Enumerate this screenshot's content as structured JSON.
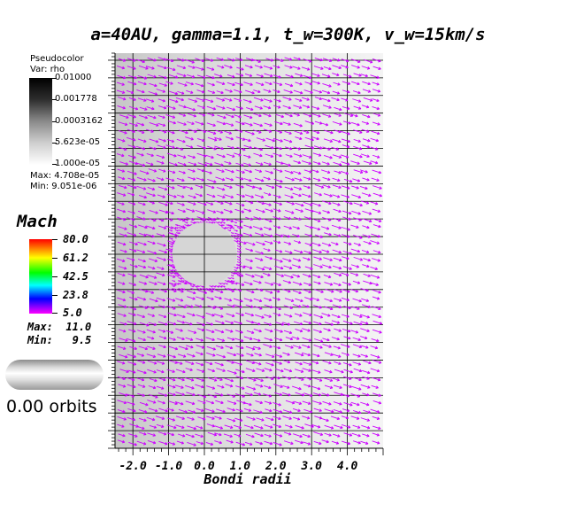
{
  "title": "a=40AU, gamma=1.1, t_w=300K, v_w=15km/s",
  "pseudocolor_legend": {
    "title": "Pseudocolor",
    "var_label": "Var: rho",
    "ticks": [
      "0.01000",
      "0.001778",
      "0.0003162",
      "5.623e-05",
      "1.000e-05"
    ],
    "max_label": "Max:  4.708e-05",
    "min_label": "Min:  9.051e-06",
    "colormap": [
      "#000000",
      "#ffffff"
    ]
  },
  "mach_legend": {
    "title": "Mach",
    "ticks": [
      "80.0",
      "61.2",
      "42.5",
      "23.8",
      "5.0"
    ],
    "max_label": "Max:  11.0",
    "min_label": "Min:   9.5",
    "colormap": [
      "#ff0000",
      "#ffff00",
      "#00ff00",
      "#00ffff",
      "#0000ff",
      "#ff00ff"
    ]
  },
  "time_label": "0.00 orbits",
  "chart_data": {
    "type": "pseudocolor with vector field",
    "xlabel": "Bondi radii",
    "ylabel": "",
    "x_tick_labels": [
      "-2.0",
      "-1.0",
      "0.0",
      "1.0",
      "2.0",
      "3.0",
      "4.0"
    ],
    "x_ticks": [
      -2.0,
      -1.0,
      0.0,
      1.0,
      2.0,
      3.0,
      4.0
    ],
    "xlim": [
      -2.5,
      5.0
    ],
    "ylim": [
      -5.0,
      6.2
    ],
    "grid": true,
    "grid_x": [
      -2.0,
      -1.0,
      0.0,
      1.0,
      2.0,
      3.0,
      4.0
    ],
    "grid_y_spacing": 0.5,
    "obstacle": {
      "shape": "circle",
      "center": [
        0.0,
        0.5
      ],
      "radius": 0.9
    },
    "vector_color": "#cc00ff",
    "vector_direction_deg": -18,
    "density_range": [
      9.051e-06,
      4.708e-05
    ],
    "mach_range": [
      9.5,
      11.0
    ]
  }
}
